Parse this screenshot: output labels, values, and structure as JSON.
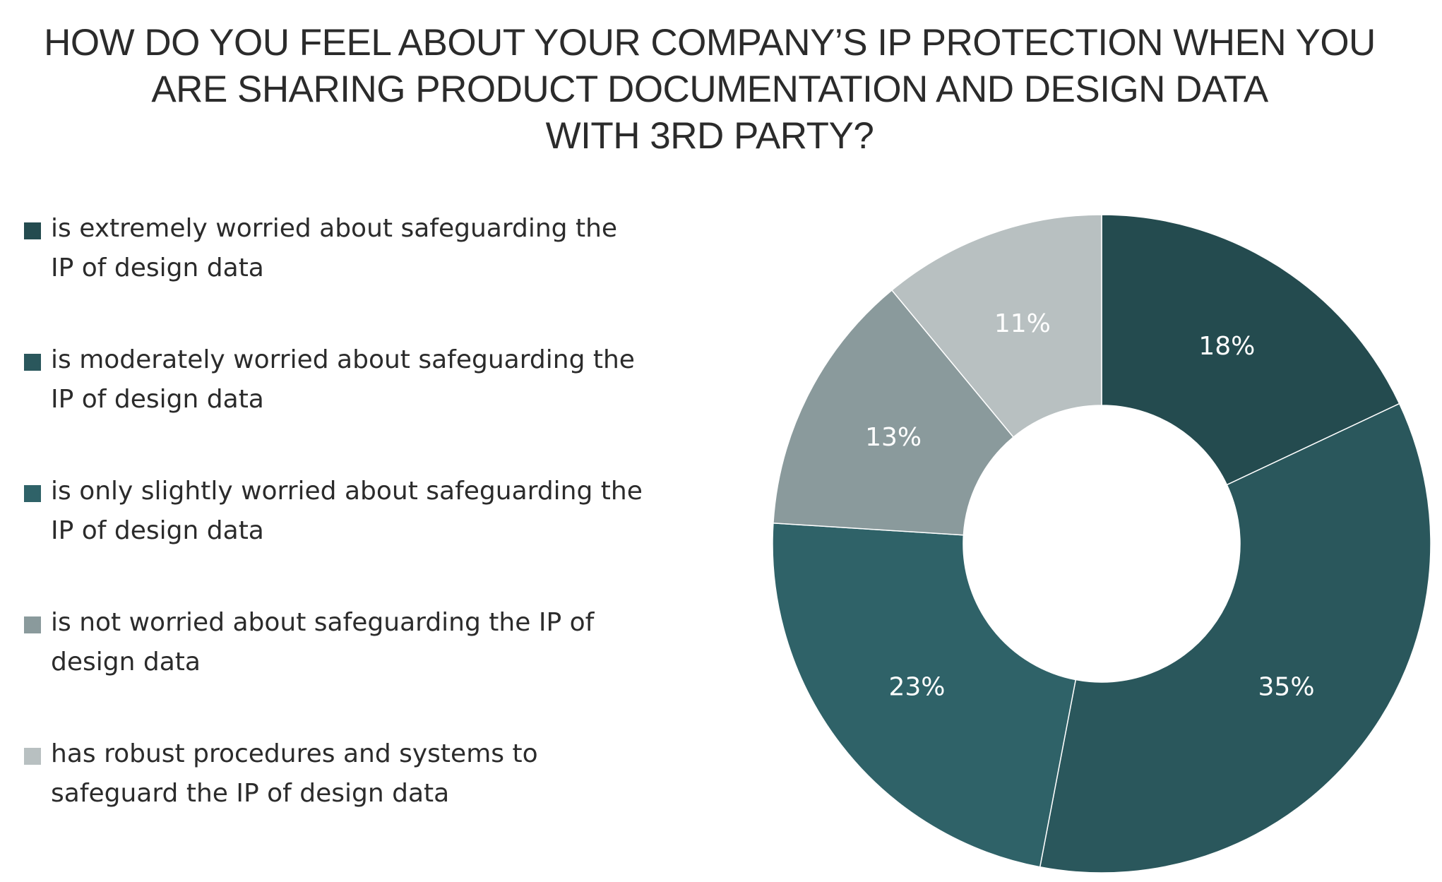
{
  "chart_data": {
    "type": "pie",
    "donut": true,
    "title_lines": [
      "HOW DO YOU FEEL ABOUT YOUR COMPANY’S IP PROTECTION WHEN YOU",
      "ARE SHARING PRODUCT DOCUMENTATION AND DESIGN DATA",
      "WITH 3RD PARTY?"
    ],
    "legend_position": "left",
    "slices": [
      {
        "label": "is extremely worried about safeguarding the IP of design data",
        "value": 18,
        "display": "18%",
        "color": "#244b4f"
      },
      {
        "label": "is moderately worried about safeguarding the IP of design data",
        "value": 35,
        "display": "35%",
        "color": "#2a575c"
      },
      {
        "label": "is only slightly worried about safeguarding the IP of design data",
        "value": 23,
        "display": "23%",
        "color": "#2f6268"
      },
      {
        "label": "is not worried about safeguarding the IP of design data",
        "value": 13,
        "display": "13%",
        "color": "#8a9a9c"
      },
      {
        "label": "has robust procedures and systems to safeguard the IP of design data",
        "value": 11,
        "display": "11%",
        "color": "#b8c0c1"
      }
    ]
  }
}
